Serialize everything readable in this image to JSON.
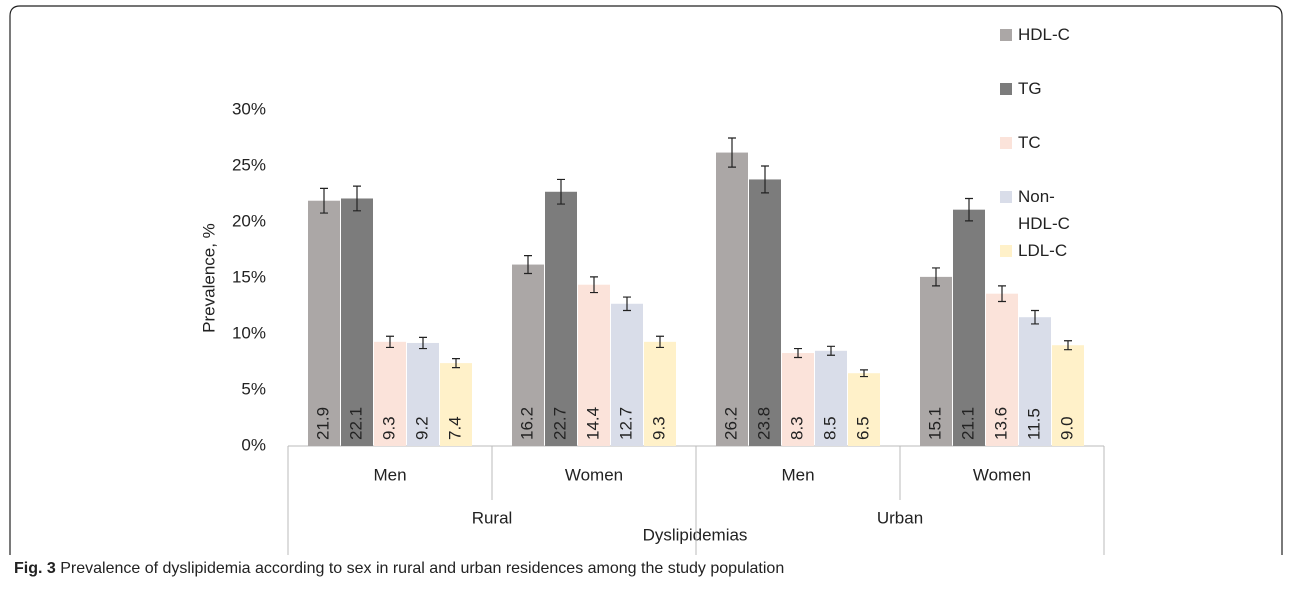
{
  "chart_data": {
    "type": "bar",
    "caption_label": "Fig. 3",
    "caption": "Prevalence of dyslipidemia according to sex in rural and urban residences among the study population",
    "y_label": "Prevalence, %",
    "x_label": "Dyslipidemias",
    "categories": [
      "Men",
      "Women",
      "Men",
      "Women"
    ],
    "groups": [
      "Rural",
      "Urban"
    ],
    "ylim": [
      0,
      30
    ],
    "yticks": [
      {
        "value": 0,
        "label": "0%"
      },
      {
        "value": 5,
        "label": "5%"
      },
      {
        "value": 10,
        "label": "10%"
      },
      {
        "value": 15,
        "label": "15%"
      },
      {
        "value": 20,
        "label": "20%"
      },
      {
        "value": 25,
        "label": "25%"
      },
      {
        "value": 30,
        "label": "30%"
      }
    ],
    "grid": false,
    "legend": "right",
    "series": [
      {
        "name": "HDL-C",
        "color": "#aba7a6",
        "values": [
          21.9,
          16.2,
          26.2,
          15.1
        ],
        "errors": [
          1.1,
          0.8,
          1.3,
          0.8
        ]
      },
      {
        "name": "TG",
        "color": "#7c7c7c",
        "values": [
          22.1,
          22.7,
          23.8,
          21.1
        ],
        "errors": [
          1.1,
          1.1,
          1.2,
          1.0
        ]
      },
      {
        "name": "TC",
        "color": "#fbe3da",
        "values": [
          9.3,
          14.4,
          8.3,
          13.6
        ],
        "errors": [
          0.5,
          0.7,
          0.4,
          0.7
        ]
      },
      {
        "name": "Non-HDL-C",
        "color": "#d9dde9",
        "values": [
          9.2,
          12.7,
          8.5,
          11.5
        ],
        "errors": [
          0.5,
          0.6,
          0.4,
          0.6
        ]
      },
      {
        "name": "LDL-C",
        "color": "#fff1c9",
        "values": [
          7.4,
          9.3,
          6.5,
          9.0
        ],
        "value_labels": [
          "7.4",
          "9.3",
          "6.5",
          "9.0"
        ],
        "errors": [
          0.4,
          0.5,
          0.3,
          0.4
        ]
      }
    ]
  }
}
